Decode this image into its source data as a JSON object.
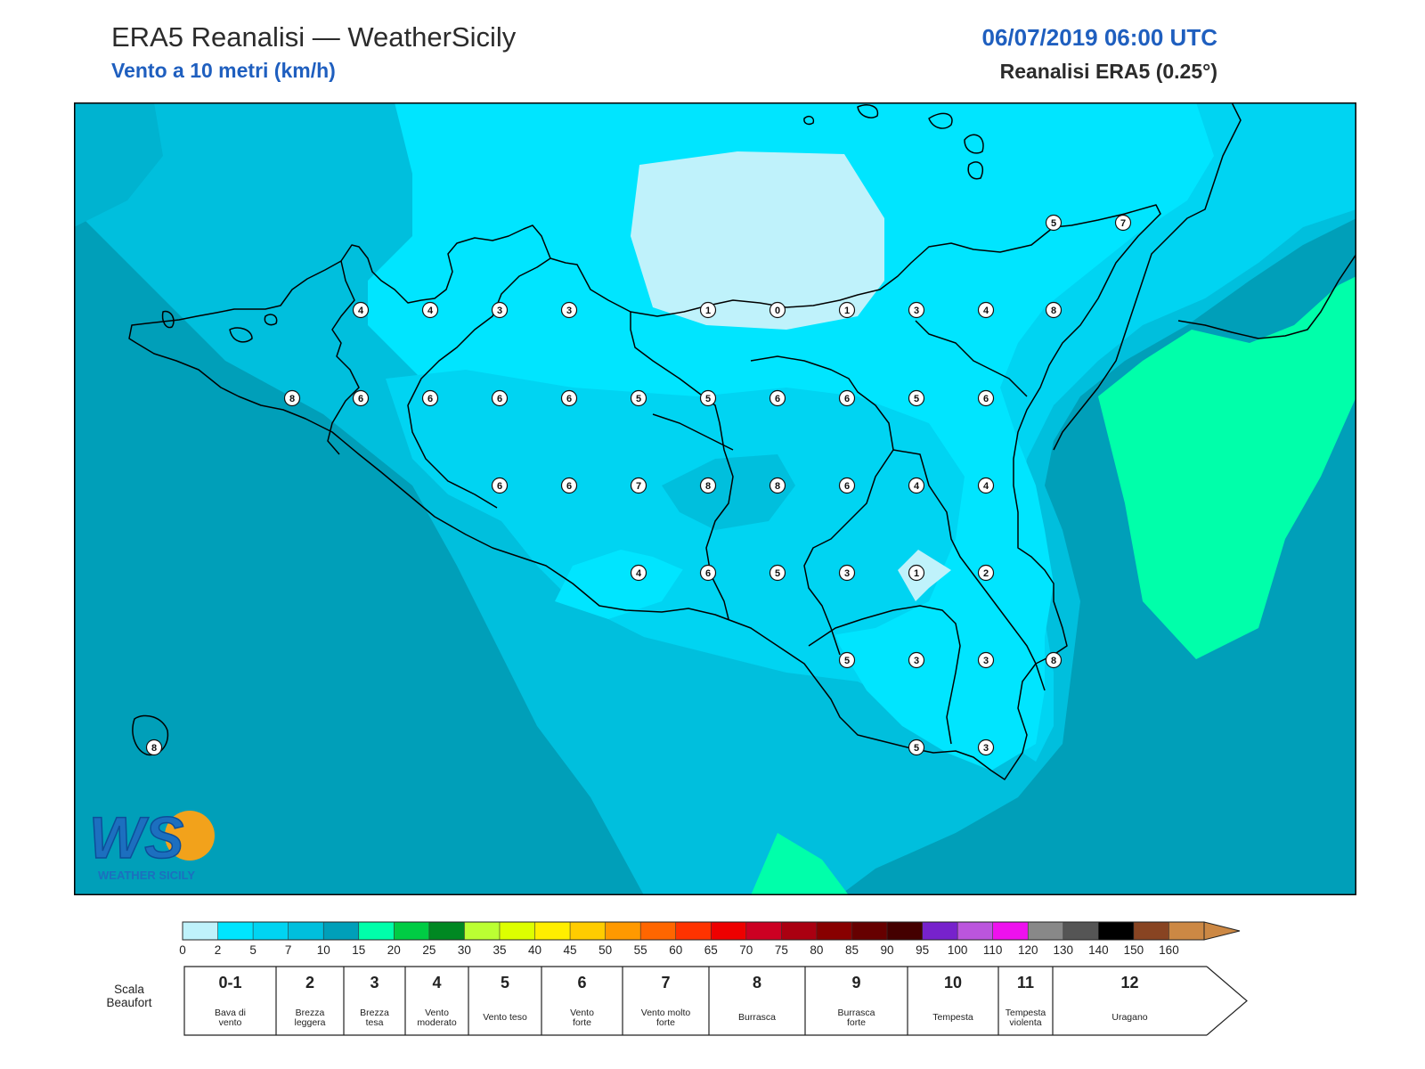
{
  "header": {
    "title": "ERA5 Reanalisi — WeatherSicily",
    "subtitle": "Vento a 10 metri (km/h)",
    "datetime": "06/07/2019 06:00 UTC",
    "model": "Reanalisi ERA5 (0.25°)"
  },
  "logo": {
    "letters": "WS",
    "caption": "WEATHER SICILY"
  },
  "colorbar": {
    "colors": [
      "#bff2fb",
      "#00e5ff",
      "#00d4f2",
      "#00bfdd",
      "#009fb9",
      "#00ffaa",
      "#00cc44",
      "#008822",
      "#bbff33",
      "#ddff00",
      "#ffee00",
      "#ffcc00",
      "#ff9900",
      "#ff6600",
      "#ff3300",
      "#ee0000",
      "#cc0022",
      "#aa0011",
      "#880000",
      "#660000",
      "#440000",
      "#7722cc",
      "#bb55dd",
      "#ee11ee",
      "#888888",
      "#555555",
      "#000000",
      "#884422",
      "#cc8844"
    ],
    "ticks": [
      "0",
      "2",
      "5",
      "7",
      "10",
      "15",
      "20",
      "25",
      "30",
      "35",
      "40",
      "45",
      "50",
      "55",
      "60",
      "65",
      "70",
      "75",
      "80",
      "85",
      "90",
      "95",
      "100",
      "110",
      "120",
      "130",
      "140",
      "150",
      "160"
    ]
  },
  "beaufort": {
    "label_line1": "Scala",
    "label_line2": "Beaufort",
    "cells": [
      {
        "num": "0-1",
        "d1": "Bava di",
        "d2": "vento"
      },
      {
        "num": "2",
        "d1": "Brezza",
        "d2": "leggera"
      },
      {
        "num": "3",
        "d1": "Brezza",
        "d2": "tesa"
      },
      {
        "num": "4",
        "d1": "Vento",
        "d2": "moderato"
      },
      {
        "num": "5",
        "d1": "Vento teso",
        "d2": ""
      },
      {
        "num": "6",
        "d1": "Vento",
        "d2": "forte"
      },
      {
        "num": "7",
        "d1": "Vento molto",
        "d2": "forte"
      },
      {
        "num": "8",
        "d1": "Burrasca",
        "d2": ""
      },
      {
        "num": "9",
        "d1": "Burrasca",
        "d2": "forte"
      },
      {
        "num": "10",
        "d1": "Tempesta",
        "d2": ""
      },
      {
        "num": "11",
        "d1": "Tempesta",
        "d2": "violenta"
      },
      {
        "num": "12",
        "d1": "Uragano",
        "d2": ""
      }
    ]
  },
  "station_values": [
    "5",
    "7",
    "4",
    "4",
    "3",
    "3",
    "1",
    "0",
    "1",
    "3",
    "4",
    "8",
    "8",
    "6",
    "6",
    "6",
    "6",
    "5",
    "5",
    "6",
    "6",
    "5",
    "6",
    "6",
    "6",
    "7",
    "8",
    "8",
    "6",
    "4",
    "4",
    "4",
    "6",
    "5",
    "3",
    "1",
    "2",
    "5",
    "3",
    "3",
    "8",
    "5",
    "3",
    "8"
  ]
}
